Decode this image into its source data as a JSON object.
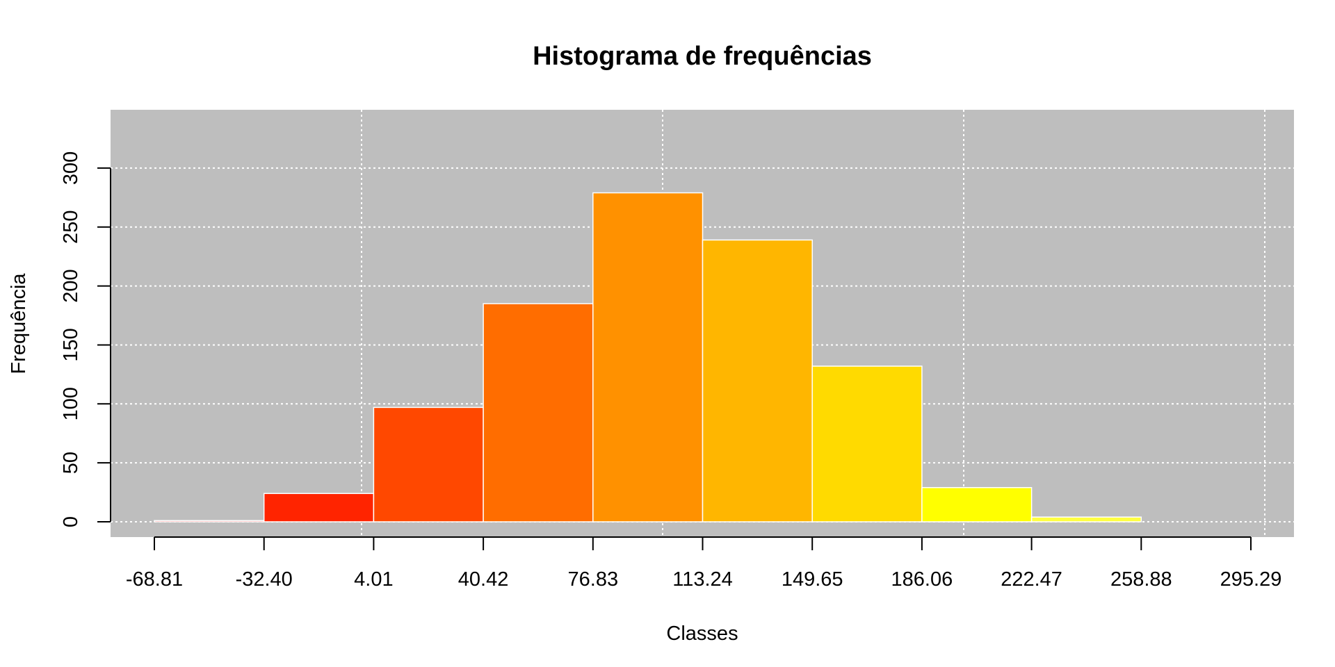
{
  "chart_data": {
    "type": "bar",
    "title": "Histograma de frequências",
    "xlabel": "Classes",
    "ylabel": "Frequência",
    "bin_edges": [
      -68.81,
      -32.4,
      4.01,
      40.42,
      76.83,
      113.24,
      149.65,
      186.06,
      222.47,
      258.88,
      295.29
    ],
    "x_tick_labels": [
      "-68.81",
      "-32.40",
      "4.01",
      "40.42",
      "76.83",
      "113.24",
      "149.65",
      "186.06",
      "222.47",
      "258.88",
      "295.29"
    ],
    "values": [
      1,
      24,
      97,
      185,
      279,
      239,
      132,
      29,
      4,
      0
    ],
    "bar_colors": [
      "#FF0000",
      "#FF2400",
      "#FF4800",
      "#FF6D00",
      "#FF9100",
      "#FFB600",
      "#FFDA00",
      "#FFFF00",
      "#FFFF40",
      "#FFFFBF"
    ],
    "y_ticks": [
      0,
      50,
      100,
      150,
      200,
      250,
      300
    ],
    "y_tick_labels": [
      "0",
      "50",
      "100",
      "150",
      "200",
      "250",
      "300"
    ],
    "ylim": [
      0,
      340
    ],
    "xlim": [
      -68.81,
      295.29
    ],
    "grid": true,
    "panel_background": "#BEBEBE",
    "grid_color": "#FFFFFF",
    "bar_border_color": "#FFFFFF"
  }
}
